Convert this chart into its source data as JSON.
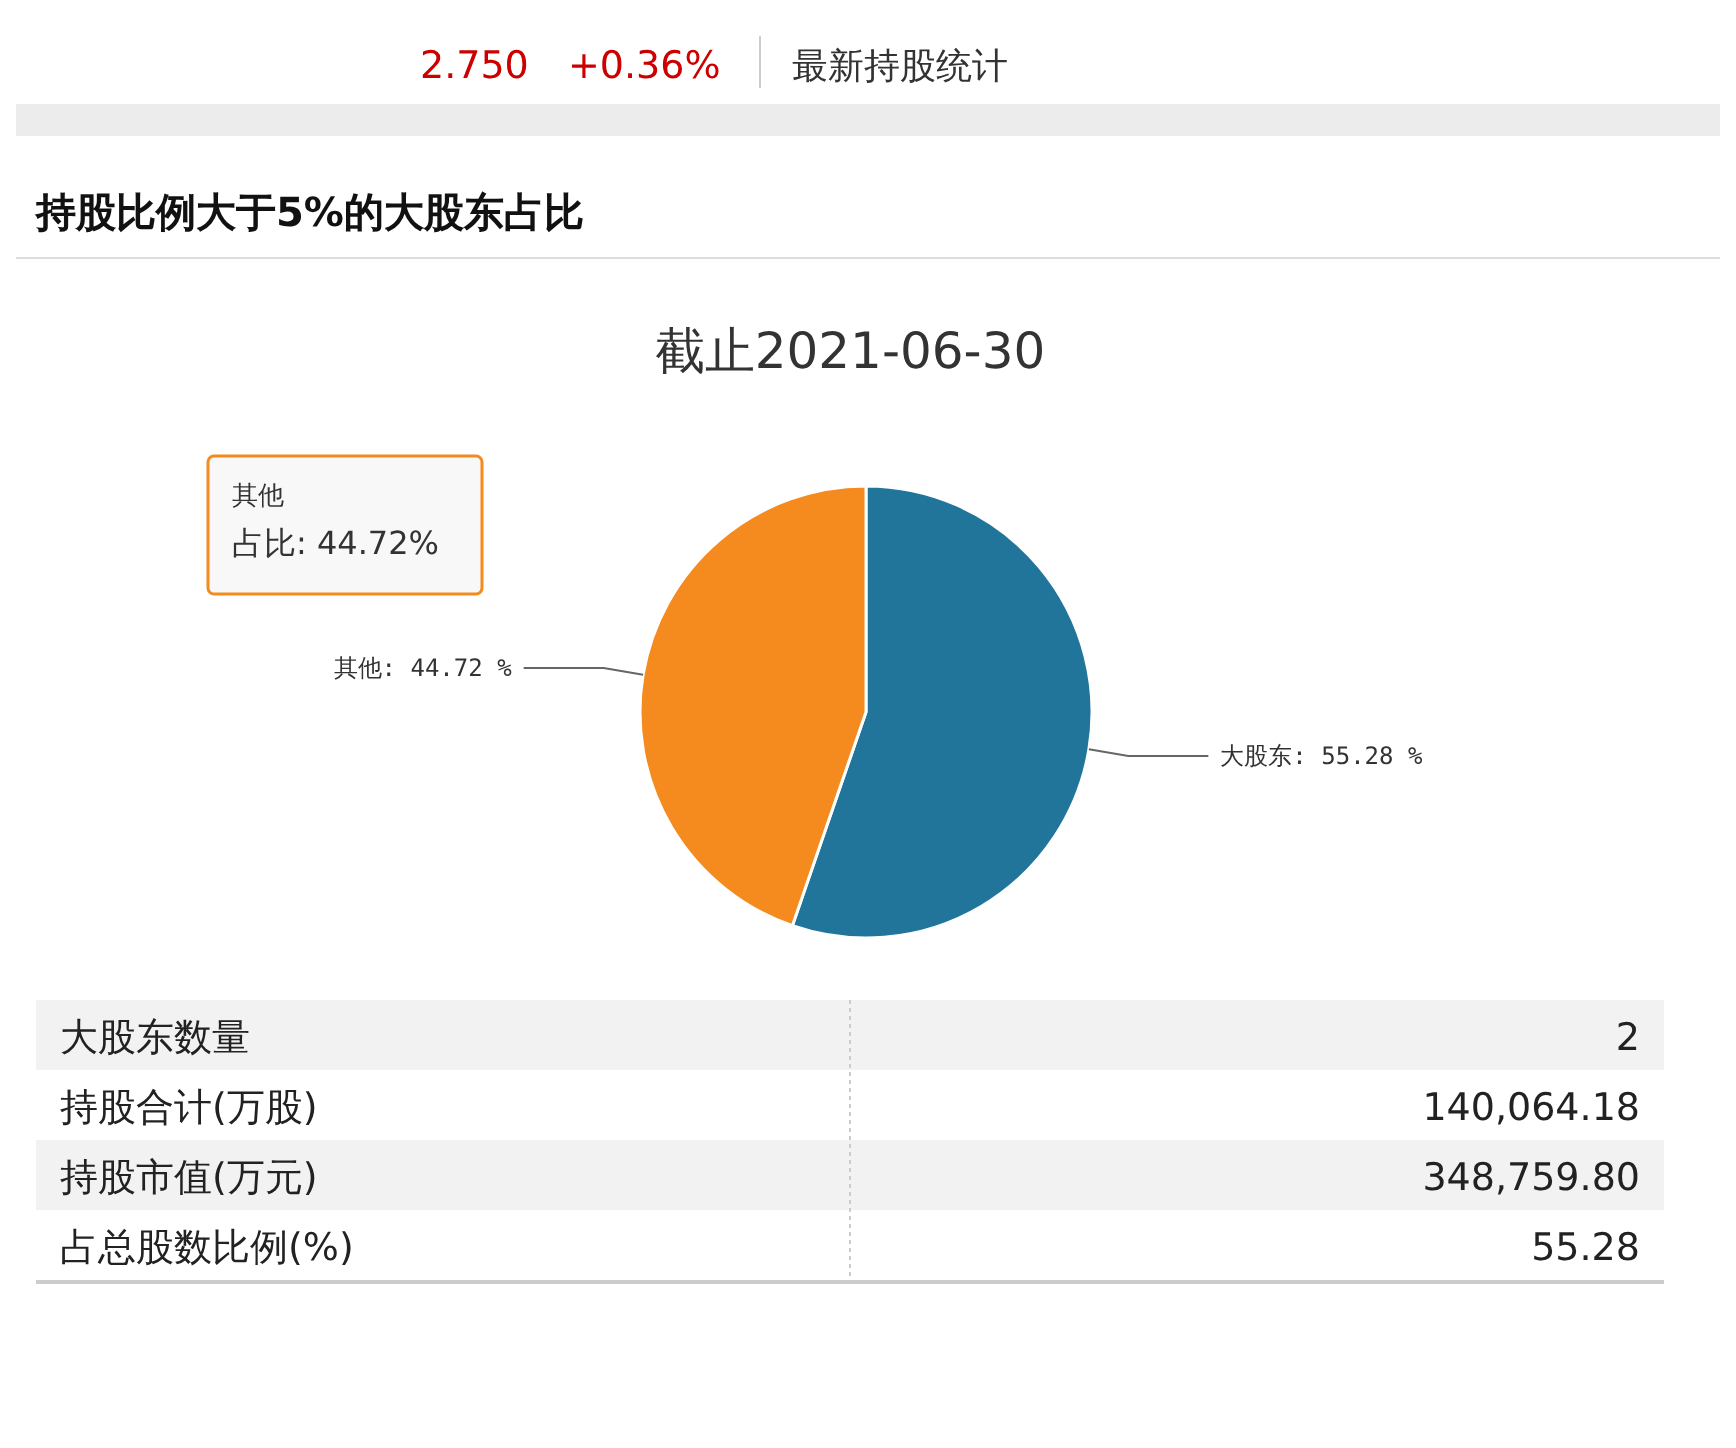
{
  "chart_data": {
    "type": "pie",
    "title": "截止2021-06-30",
    "categories": [
      "大股东",
      "其他"
    ],
    "values": [
      55.28,
      44.72
    ],
    "colors": [
      "#21759b",
      "#f58a1f"
    ],
    "value_labels": [
      ": 55.28 %",
      ": 44.72 %"
    ],
    "annotations": [
      "2.750",
      "+0.36%",
      "最新持股统计",
      "持股比例大于5%的大股东占比",
      "其他",
      "占比: 44.72%",
      "大股东数量",
      "2",
      "持股合计(万股)",
      "140,064.18",
      "持股市值(万元)",
      "348,759.80",
      "占总股数比例(%)",
      "55.28"
    ]
  }
}
